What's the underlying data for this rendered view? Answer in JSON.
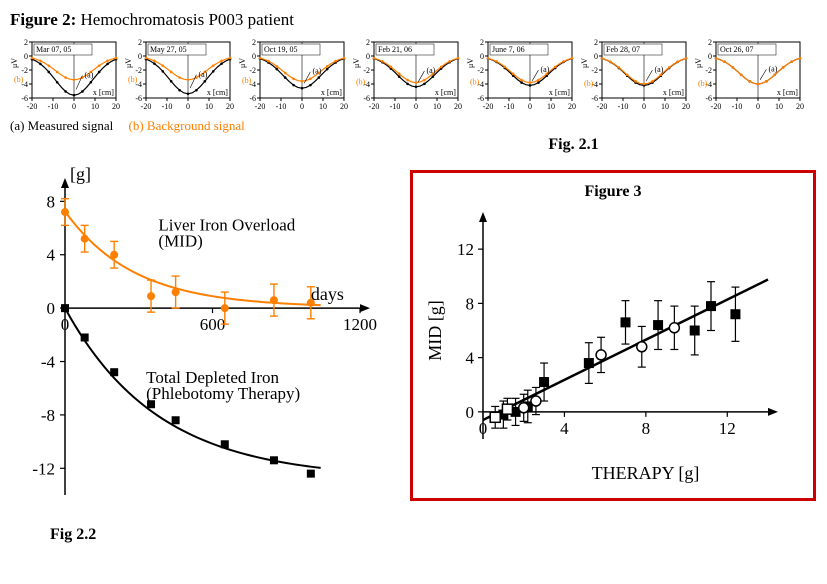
{
  "figure2": {
    "title_prefix": "Figure 2:",
    "title_text": "Hemochromatosis P003 patient",
    "legend_a": "(a) Measured signal",
    "legend_b": "(b) Background signal",
    "fig21_label": "Fig. 2.1",
    "mini_common": {
      "xlim": [
        -20,
        20
      ],
      "ylim": [
        -6,
        2
      ],
      "xticks": [
        -20,
        -10,
        0,
        10,
        20
      ],
      "yticks": [
        -6,
        -4,
        -2,
        0,
        2
      ],
      "xlabel": "x [cm]",
      "ylabel": "μV",
      "a_label": "(a)",
      "b_label": "(b)",
      "curve_a_color": "#000000",
      "curve_b_color": "#ff7f00",
      "point_color_a": "#000000",
      "point_color_b": "#ff7f00",
      "background": "#ffffff",
      "axis_color": "#000000"
    },
    "minis": [
      {
        "date": "Mar 07, 05",
        "a_depth": -5.6,
        "b_depth": -3.4
      },
      {
        "date": "May 27, 05",
        "a_depth": -5.4,
        "b_depth": -3.4
      },
      {
        "date": "Oct 19, 05",
        "a_depth": -4.6,
        "b_depth": -3.6
      },
      {
        "date": "Feb 21, 06",
        "a_depth": -4.4,
        "b_depth": -3.8
      },
      {
        "date": "June 7, 06",
        "a_depth": -4.2,
        "b_depth": -3.8
      },
      {
        "date": "Feb 28, 07",
        "a_depth": -4.2,
        "b_depth": -4.0
      },
      {
        "date": "Oct 26, 07",
        "a_depth": -4.0,
        "b_depth": -4.0
      }
    ]
  },
  "figure22": {
    "label": "Fig 2.2",
    "ylabel": "[g]",
    "xlabel": "days",
    "xlim": [
      0,
      1200
    ],
    "ylim": [
      -14,
      9
    ],
    "xticks": [
      0,
      600,
      1200
    ],
    "yticks": [
      -12,
      -8,
      -4,
      0,
      4,
      8
    ],
    "series_a": {
      "name": "Liver Iron Overload\n(MID)",
      "name_line1": "Liver Iron Overload",
      "name_line2": "(MID)",
      "color": "#ff7f00",
      "marker": "circle",
      "line_width": 2,
      "points": [
        {
          "x": 0,
          "y": 7.2,
          "err": 1.0
        },
        {
          "x": 80,
          "y": 5.2,
          "err": 1.0
        },
        {
          "x": 200,
          "y": 4.0,
          "err": 1.0
        },
        {
          "x": 350,
          "y": 0.9,
          "err": 1.2
        },
        {
          "x": 450,
          "y": 1.2,
          "err": 1.2
        },
        {
          "x": 650,
          "y": 0.0,
          "err": 1.2
        },
        {
          "x": 850,
          "y": 0.6,
          "err": 1.2
        },
        {
          "x": 1000,
          "y": 0.4,
          "err": 1.2
        }
      ]
    },
    "series_b": {
      "name": "Total Depleted Iron\n(Phlebotomy Therapy)",
      "name_line1": "Total Depleted Iron",
      "name_line2": "(Phlebotomy Therapy)",
      "color": "#000000",
      "marker": "square",
      "line_width": 2,
      "points": [
        {
          "x": 0,
          "y": 0.0
        },
        {
          "x": 80,
          "y": -2.2
        },
        {
          "x": 200,
          "y": -4.8
        },
        {
          "x": 350,
          "y": -7.2
        },
        {
          "x": 450,
          "y": -8.4
        },
        {
          "x": 650,
          "y": -10.2
        },
        {
          "x": 850,
          "y": -11.4
        },
        {
          "x": 1000,
          "y": -12.4
        }
      ]
    }
  },
  "figure3": {
    "title": "Figure 3",
    "xlabel": "THERAPY [g]",
    "ylabel": "MID [g]",
    "xlim": [
      0,
      14
    ],
    "ylim": [
      -2,
      14
    ],
    "xticks": [
      0,
      4,
      8,
      12
    ],
    "yticks": [
      0,
      4,
      8,
      12
    ],
    "border_color": "#cc0000",
    "fit_line": {
      "slope": 0.74,
      "intercept": -0.6,
      "color": "#000000",
      "width": 2.5
    },
    "points_filled": [
      {
        "x": 1.0,
        "y": -0.2,
        "err": 1.0
      },
      {
        "x": 1.6,
        "y": 0.0,
        "err": 1.0
      },
      {
        "x": 2.2,
        "y": 0.4,
        "err": 1.2
      },
      {
        "x": 3.0,
        "y": 2.2,
        "err": 1.4
      },
      {
        "x": 5.2,
        "y": 3.6,
        "err": 1.5
      },
      {
        "x": 7.0,
        "y": 6.6,
        "err": 1.6
      },
      {
        "x": 8.6,
        "y": 6.4,
        "err": 1.8
      },
      {
        "x": 10.4,
        "y": 6.0,
        "err": 1.8
      },
      {
        "x": 11.2,
        "y": 7.8,
        "err": 1.8
      },
      {
        "x": 12.4,
        "y": 7.2,
        "err": 2.0
      }
    ],
    "points_open_square": [
      {
        "x": 0.6,
        "y": -0.4,
        "err": 0.8
      },
      {
        "x": 1.2,
        "y": 0.2,
        "err": 0.8
      }
    ],
    "points_open_circle": [
      {
        "x": 2.0,
        "y": 0.3,
        "err": 1.0
      },
      {
        "x": 2.6,
        "y": 0.8,
        "err": 1.0
      },
      {
        "x": 5.8,
        "y": 4.2,
        "err": 1.3
      },
      {
        "x": 7.8,
        "y": 4.8,
        "err": 1.5
      },
      {
        "x": 9.4,
        "y": 6.2,
        "err": 1.6
      }
    ]
  }
}
